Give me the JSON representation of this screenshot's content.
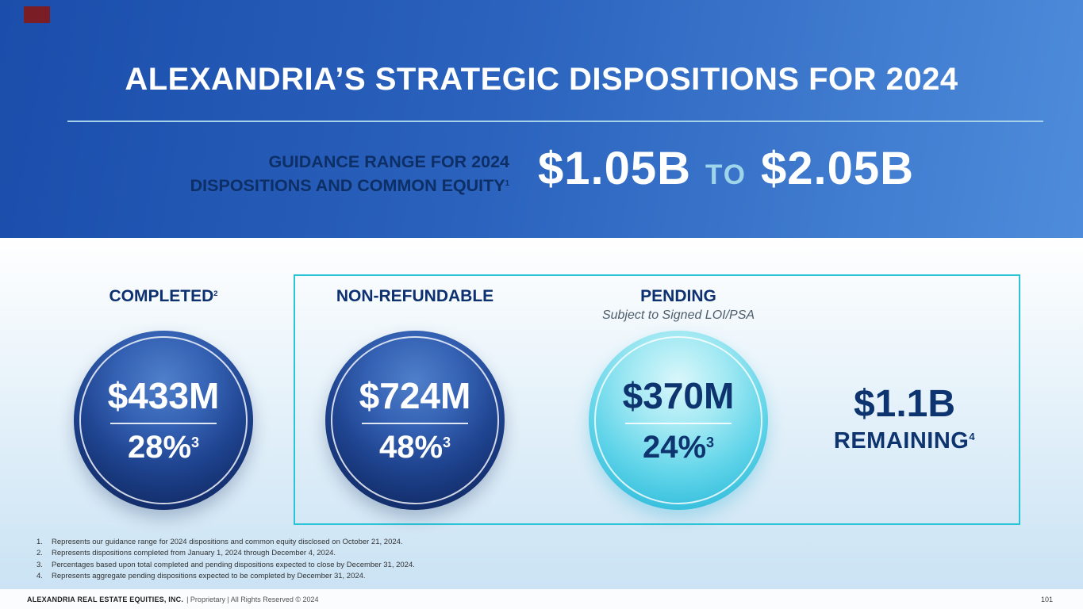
{
  "colors": {
    "header_gradient_start": "#1B4DAB",
    "header_gradient_end": "#4E8CDB",
    "accent_teal": "#2AC4D6",
    "navy_text": "#0E3470",
    "circle_dark_navy": "#14306F",
    "circle_cyan": "#33BDDC",
    "range_to_text": "#9FD5E9",
    "divider_light_blue": "#A6D3EA",
    "corner_mark_red": "#7A1D24"
  },
  "header": {
    "title": "ALEXANDRIA’S STRATEGIC DISPOSITIONS FOR 2024",
    "guidance_label_line1": "GUIDANCE RANGE FOR 2024",
    "guidance_label_line2": "DISPOSITIONS AND COMMON EQUITY",
    "guidance_footnote": "1",
    "range_low": "$1.05B",
    "range_connector": "TO",
    "range_high": "$2.05B"
  },
  "circles": [
    {
      "header": "COMPLETED",
      "header_footnote": "2",
      "amount": "$433M",
      "percent": "28%",
      "percent_footnote": "3"
    },
    {
      "header": "NON-REFUNDABLE",
      "amount": "$724M",
      "percent": "48%",
      "percent_footnote": "3"
    },
    {
      "header": "PENDING",
      "subheader": "Subject to Signed LOI/PSA",
      "amount": "$370M",
      "percent": "24%",
      "percent_footnote": "3"
    }
  ],
  "remaining": {
    "amount": "$1.1B",
    "label": "REMAINING",
    "footnote": "4"
  },
  "footnotes": [
    {
      "num": "1.",
      "text": "Represents our guidance range for 2024 dispositions and common equity disclosed on October 21, 2024."
    },
    {
      "num": "2.",
      "text": "Represents dispositions completed from January 1, 2024 through December 4, 2024."
    },
    {
      "num": "3.",
      "text": "Percentages based upon total completed and pending dispositions expected to close by December 31, 2024."
    },
    {
      "num": "4.",
      "text": "Represents aggregate pending dispositions expected to be completed by December 31, 2024."
    }
  ],
  "footer": {
    "company": "ALEXANDRIA REAL ESTATE EQUITIES, INC.",
    "meta": "| Proprietary | All Rights Reserved © 2024",
    "page": "101"
  }
}
